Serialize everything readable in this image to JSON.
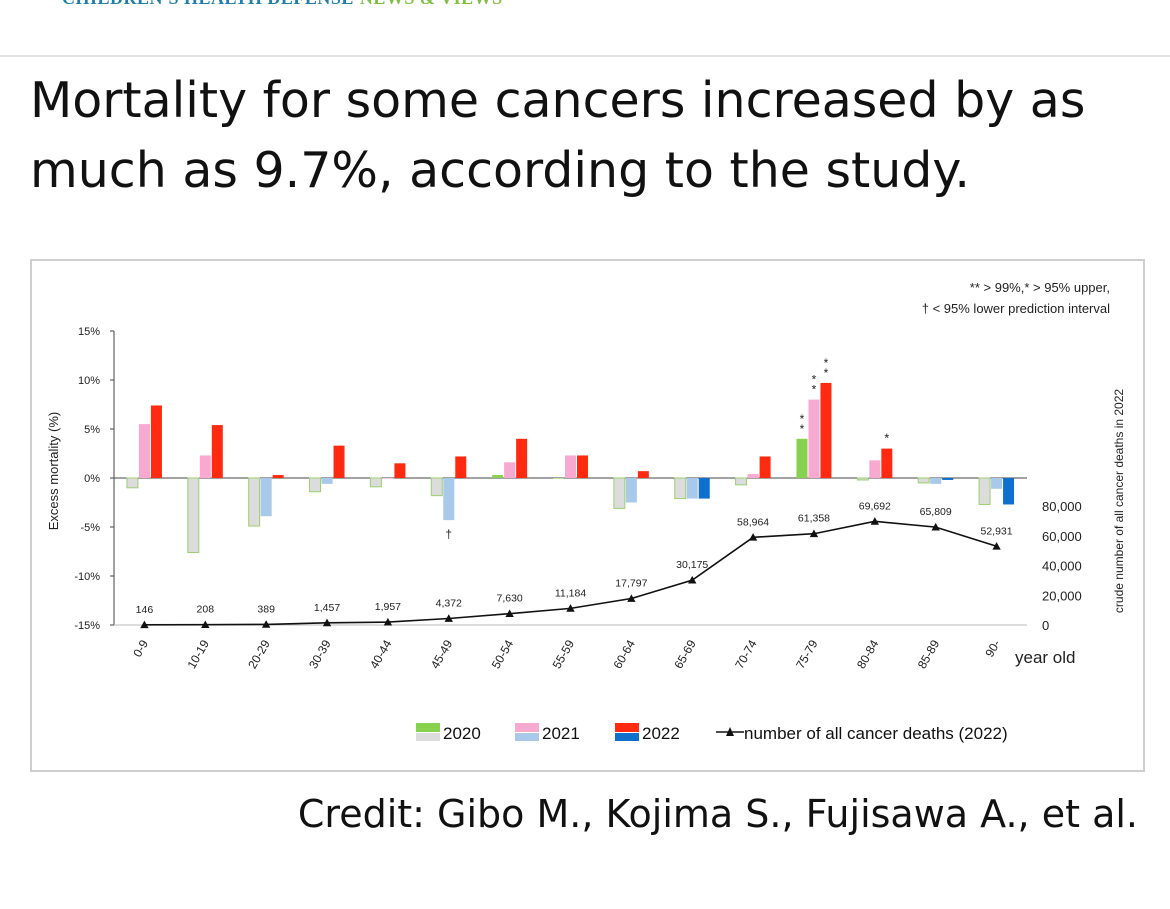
{
  "masthead": {
    "brand": "CHILDREN'S HEALTH DEFENSE",
    "section": "NEWS & VIEWS"
  },
  "headline": "Mortality for some cancers increased by as much as 9.7%, according to the study.",
  "credit": "Credit: Gibo M., Kojima S., Fujisawa A., et al.",
  "chart_data": {
    "type": "bar",
    "title": "",
    "ylabel": "Excess mortality (%)",
    "y2label": "crude number of all cancer deaths in 2022",
    "xlabel": "year old",
    "ylim": [
      -15,
      15
    ],
    "y2lim": [
      0,
      80000
    ],
    "yticks": [
      "15%",
      "10%",
      "5%",
      "0%",
      "-5%",
      "-10%",
      "-15%"
    ],
    "y2ticks": [
      "80,000",
      "60,000",
      "40,000",
      "20,000",
      "0"
    ],
    "categories": [
      "0-9",
      "10-19",
      "20-29",
      "30-39",
      "40-44",
      "45-49",
      "50-54",
      "55-59",
      "60-64",
      "65-69",
      "70-74",
      "75-79",
      "80-84",
      "85-89",
      "90-"
    ],
    "series": [
      {
        "name": "2020",
        "values": [
          -1.0,
          -7.6,
          -4.9,
          -1.4,
          -0.9,
          -1.8,
          0.3,
          0.0,
          -3.1,
          -2.1,
          -0.7,
          4.0,
          -0.2,
          -0.5,
          -2.7
        ]
      },
      {
        "name": "2021",
        "values": [
          5.5,
          2.3,
          -3.9,
          -0.6,
          0.0,
          -4.3,
          1.6,
          2.3,
          -2.5,
          -2.1,
          0.4,
          8.0,
          1.8,
          -0.6,
          -1.1
        ]
      },
      {
        "name": "2022",
        "values": [
          7.4,
          5.4,
          0.3,
          3.3,
          1.5,
          2.2,
          4.0,
          2.3,
          0.7,
          -2.1,
          2.2,
          9.7,
          3.0,
          -0.2,
          -2.7
        ]
      }
    ],
    "line_series": {
      "name": "number of all cancer deaths (2022)",
      "values": [
        146,
        208,
        389,
        1457,
        1957,
        4372,
        7630,
        11184,
        17797,
        30175,
        58964,
        61358,
        69692,
        65809,
        52931
      ],
      "labels": [
        "146",
        "208",
        "389",
        "1,457",
        "1,957",
        "4,372",
        "7,630",
        "11,184",
        "17,797",
        "30,175",
        "58,964",
        "61,358",
        "69,692",
        "65,809",
        "52,931"
      ]
    },
    "significance": [
      {
        "category": "45-49",
        "series": "2021",
        "mark": "†"
      },
      {
        "category": "75-79",
        "series": "2020",
        "mark": "**"
      },
      {
        "category": "75-79",
        "series": "2021",
        "mark": "**"
      },
      {
        "category": "75-79",
        "series": "2022",
        "mark": "**"
      },
      {
        "category": "80-84",
        "series": "2022",
        "mark": "*"
      }
    ],
    "annotations": [
      "** > 99%,* > 95% upper,",
      "† < 95% lower prediction interval"
    ],
    "legend_position": "bottom",
    "colors": {
      "2020_pos": "#88d14f",
      "2021_pos": "#f7a9d0",
      "2022_pos": "#ff2a0f",
      "2020_neg": "#dcdcdc",
      "2021_neg": "#a9c9ea",
      "2022_neg": "#0f6fcd",
      "line": "#111111"
    }
  }
}
